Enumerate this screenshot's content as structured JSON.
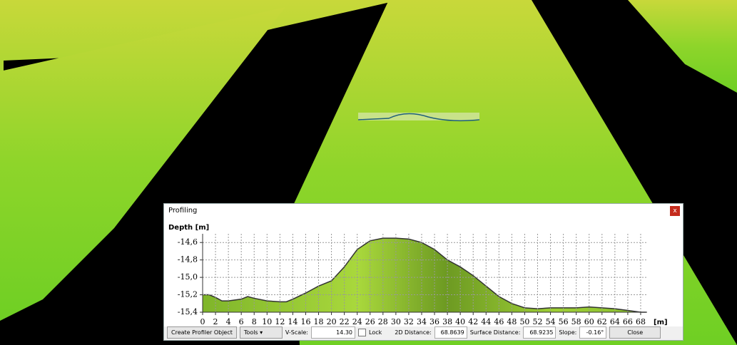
{
  "window": {
    "title": "Profiling"
  },
  "chart_data": {
    "type": "area",
    "y_label": "Depth [m]",
    "x_unit": "[m]",
    "color": "#8cc63f",
    "line_color": "#333333",
    "grid": true,
    "x": [
      0,
      1,
      2,
      3,
      4,
      6,
      7,
      8,
      10,
      12,
      13,
      14,
      16,
      18,
      20,
      22,
      24,
      26,
      28,
      30,
      32,
      34,
      36,
      38,
      40,
      42,
      44,
      46,
      48,
      50,
      52,
      54,
      56,
      58,
      60,
      62,
      64,
      66,
      68,
      68.86
    ],
    "values": [
      -15.2,
      -15.2,
      -15.23,
      -15.27,
      -15.27,
      -15.25,
      -15.22,
      -15.24,
      -15.27,
      -15.28,
      -15.28,
      -15.25,
      -15.18,
      -15.1,
      -15.04,
      -14.88,
      -14.68,
      -14.58,
      -14.55,
      -14.55,
      -14.56,
      -14.6,
      -14.68,
      -14.8,
      -14.88,
      -14.98,
      -15.1,
      -15.22,
      -15.3,
      -15.35,
      -15.36,
      -15.35,
      -15.35,
      -15.35,
      -15.34,
      -15.35,
      -15.36,
      -15.38,
      -15.4,
      -15.4
    ],
    "xlim": [
      0,
      69
    ],
    "xticks": [
      0,
      2,
      4,
      6,
      8,
      10,
      12,
      14,
      16,
      18,
      20,
      22,
      24,
      26,
      28,
      30,
      32,
      34,
      36,
      38,
      40,
      42,
      44,
      46,
      48,
      50,
      52,
      54,
      56,
      58,
      60,
      62,
      64,
      66,
      68
    ],
    "ylim": [
      -15.4,
      -14.5
    ],
    "yticks": [
      {
        "value": -14.6,
        "label": "-14,6"
      },
      {
        "value": -14.8,
        "label": "-14,8"
      },
      {
        "value": -15.0,
        "label": "-15,0"
      },
      {
        "value": -15.2,
        "label": "-15,2"
      },
      {
        "value": -15.4,
        "label": "-15,4"
      }
    ]
  },
  "toolbar": {
    "create_button": "Create Profiler Object",
    "tools_button": "Tools",
    "vscale_label": "V-Scale:",
    "vscale_value": "14.30",
    "lock_label": "Lock",
    "distance_2d_label": "2D Distance:",
    "distance_2d_value": "68.8639",
    "surface_distance_label": "Surface Distance:",
    "surface_distance_value": "68.9235",
    "slope_label": "Slope:",
    "slope_value": "-0.16°",
    "close_button": "Close"
  }
}
